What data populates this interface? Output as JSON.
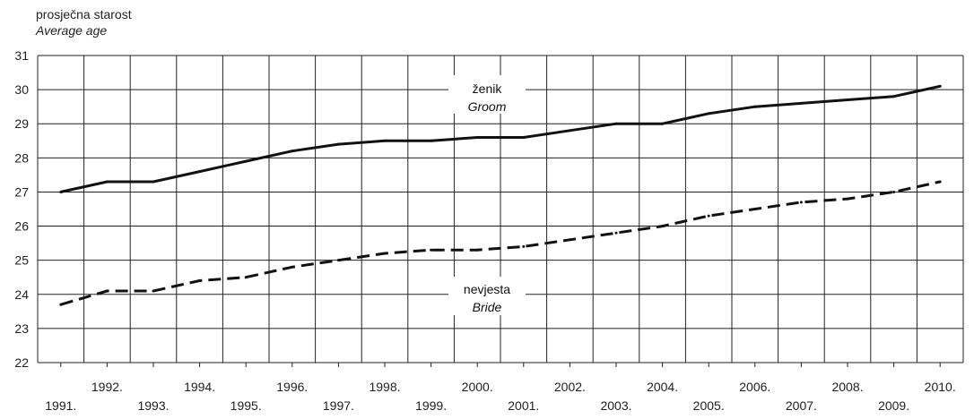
{
  "chart_data": {
    "type": "line",
    "ylabel": "prosječna starost",
    "ylabel_en": "Average age",
    "ylim": [
      22,
      31
    ],
    "yticks": [
      22,
      23,
      24,
      25,
      26,
      27,
      28,
      29,
      30,
      31
    ],
    "x": [
      "1991.",
      "1992.",
      "1993.",
      "1994.",
      "1995.",
      "1996.",
      "1997.",
      "1998.",
      "1999.",
      "2000.",
      "2001.",
      "2002.",
      "2003.",
      "2004.",
      "2005.",
      "2006.",
      "2007.",
      "2008.",
      "2009.",
      "2010."
    ],
    "grid": true,
    "series": [
      {
        "name": "ženik",
        "name_en": "Groom",
        "style": "solid",
        "values": [
          27.0,
          27.3,
          27.3,
          27.6,
          27.9,
          28.2,
          28.4,
          28.5,
          28.5,
          28.6,
          28.6,
          28.8,
          29.0,
          29.0,
          29.3,
          29.5,
          29.6,
          29.7,
          29.8,
          30.1
        ]
      },
      {
        "name": "nevjesta",
        "name_en": "Bride",
        "style": "dashed",
        "values": [
          23.7,
          24.1,
          24.1,
          24.4,
          24.5,
          24.8,
          25.0,
          25.2,
          25.3,
          25.3,
          25.4,
          25.6,
          25.8,
          26.0,
          26.3,
          26.5,
          26.7,
          26.8,
          27.0,
          27.3
        ]
      }
    ]
  },
  "colors": {
    "line": "#111111",
    "grid": "#222222"
  }
}
